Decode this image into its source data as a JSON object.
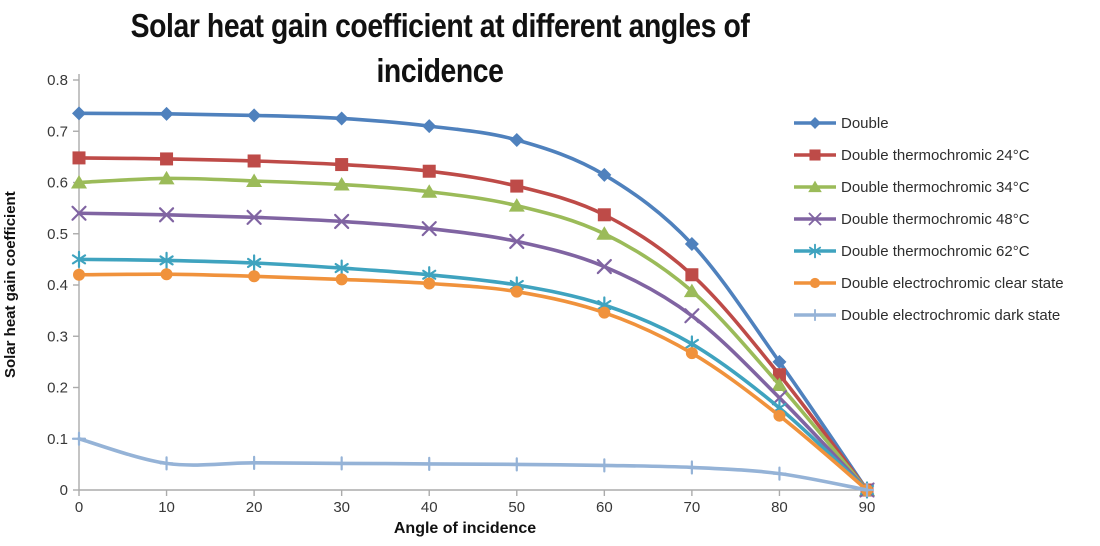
{
  "chart": {
    "title_line1": "Solar heat gain coefficient at different angles of",
    "title_line2": "incidence"
  },
  "chart_data": {
    "type": "line",
    "title": "Solar heat gain coefficient at different angles of incidence",
    "xlabel": "Angle of incidence",
    "ylabel": "Solar heat gain coefficient",
    "xlim": [
      0,
      90
    ],
    "ylim": [
      0,
      0.8
    ],
    "x": [
      0,
      10,
      20,
      30,
      40,
      50,
      60,
      70,
      80,
      90
    ],
    "x_tick_labels": [
      "0",
      "10",
      "20",
      "30",
      "40",
      "50",
      "60",
      "70",
      "80",
      "90"
    ],
    "y_tick_labels": [
      "0",
      "0.1",
      "0.2",
      "0.3",
      "0.4",
      "0.5",
      "0.6",
      "0.7",
      "0.8"
    ],
    "grid": false,
    "smooth": true,
    "legend_position": "right",
    "axis_color": "#ABABAB",
    "tick_label_color": "#383838",
    "series": [
      {
        "name": "Double",
        "color": "#4F81BD",
        "marker": "diamond",
        "values": [
          0.735,
          0.734,
          0.731,
          0.725,
          0.71,
          0.683,
          0.615,
          0.48,
          0.25,
          0
        ]
      },
      {
        "name": "Double thermochromic 24°C",
        "color": "#BE4B48",
        "marker": "square",
        "values": [
          0.648,
          0.646,
          0.642,
          0.635,
          0.622,
          0.593,
          0.537,
          0.42,
          0.225,
          0
        ]
      },
      {
        "name": "Double thermochromic 34°C",
        "color": "#9BBB59",
        "marker": "triangle",
        "values": [
          0.6,
          0.608,
          0.603,
          0.596,
          0.582,
          0.555,
          0.5,
          0.388,
          0.205,
          0
        ]
      },
      {
        "name": "Double thermochromic 48°C",
        "color": "#8064A2",
        "marker": "x",
        "values": [
          0.54,
          0.537,
          0.532,
          0.524,
          0.51,
          0.485,
          0.436,
          0.34,
          0.18,
          0
        ]
      },
      {
        "name": "Double thermochromic 62°C",
        "color": "#3FA3BF",
        "marker": "asterisk",
        "values": [
          0.45,
          0.448,
          0.443,
          0.433,
          0.42,
          0.4,
          0.361,
          0.285,
          0.16,
          0
        ]
      },
      {
        "name": "Double electrochromic clear state",
        "color": "#F0923C",
        "marker": "circle",
        "values": [
          0.42,
          0.421,
          0.417,
          0.411,
          0.403,
          0.387,
          0.346,
          0.267,
          0.145,
          0
        ]
      },
      {
        "name": "Double electrochromic dark state",
        "color": "#95B3D7",
        "marker": "plus",
        "values": [
          0.1,
          0.052,
          0.053,
          0.052,
          0.051,
          0.05,
          0.048,
          0.044,
          0.032,
          0
        ]
      }
    ]
  }
}
